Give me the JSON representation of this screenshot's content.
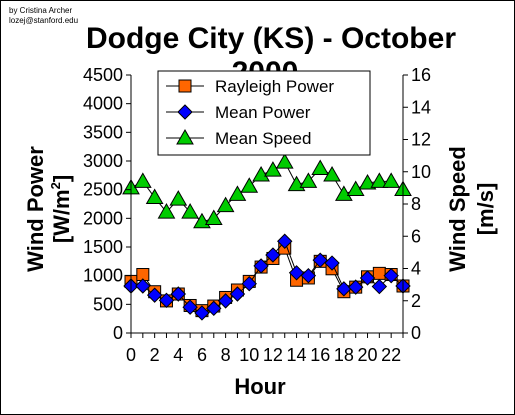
{
  "credits": {
    "line1": "by Cristina Archer",
    "line2": "lozej@stanford.edu"
  },
  "colors": {
    "rayleigh": "#ff6600",
    "mean_power": "#0000ff",
    "mean_speed": "#00cc00",
    "line": "#000000"
  },
  "chart_data": {
    "type": "line",
    "title": "Dodge City (KS) - October 2000",
    "xlabel": "Hour",
    "ylabel_left": "Wind Power",
    "ylabel_left_unit_base": "[W/m",
    "ylabel_left_unit_sup": "2",
    "ylabel_left_unit_end": "]",
    "ylabel_right": "Wind Speed",
    "ylabel_right_unit": "[m/s]",
    "x": [
      0,
      1,
      2,
      3,
      4,
      5,
      6,
      7,
      8,
      9,
      10,
      11,
      12,
      13,
      14,
      15,
      16,
      17,
      18,
      19,
      20,
      21,
      22,
      23
    ],
    "xlim": [
      0,
      23
    ],
    "xticks": [
      "0",
      "2",
      "4",
      "6",
      "8",
      "10",
      "12",
      "14",
      "16",
      "18",
      "20",
      "22"
    ],
    "ylim_left": [
      0,
      4500
    ],
    "yticks_left": [
      "0",
      "500",
      "1000",
      "1500",
      "2000",
      "2500",
      "3000",
      "3500",
      "4000",
      "4500"
    ],
    "ylim_right": [
      0,
      16
    ],
    "yticks_right": [
      "0",
      "2",
      "4",
      "6",
      "8",
      "10",
      "12",
      "14",
      "16"
    ],
    "legend_position": "top-center",
    "series": [
      {
        "name": "Rayleigh Power",
        "axis": "left",
        "marker": "square",
        "values": [
          900,
          1020,
          720,
          560,
          680,
          480,
          390,
          470,
          620,
          750,
          900,
          1150,
          1300,
          1480,
          920,
          960,
          1250,
          1120,
          720,
          800,
          980,
          1040,
          1020,
          820
        ]
      },
      {
        "name": "Mean Power",
        "axis": "left",
        "marker": "diamond",
        "values": [
          820,
          820,
          660,
          570,
          680,
          450,
          350,
          430,
          560,
          680,
          860,
          1170,
          1360,
          1600,
          1050,
          1000,
          1270,
          1220,
          770,
          800,
          960,
          810,
          1000,
          820
        ]
      },
      {
        "name": "Mean Speed",
        "axis": "right",
        "marker": "triangle",
        "values": [
          9.0,
          9.4,
          8.4,
          7.5,
          8.3,
          7.5,
          6.9,
          7.1,
          7.9,
          8.6,
          9.1,
          9.8,
          10.1,
          10.6,
          9.2,
          9.4,
          10.2,
          9.8,
          8.6,
          8.9,
          9.3,
          9.4,
          9.4,
          8.9
        ]
      }
    ]
  }
}
